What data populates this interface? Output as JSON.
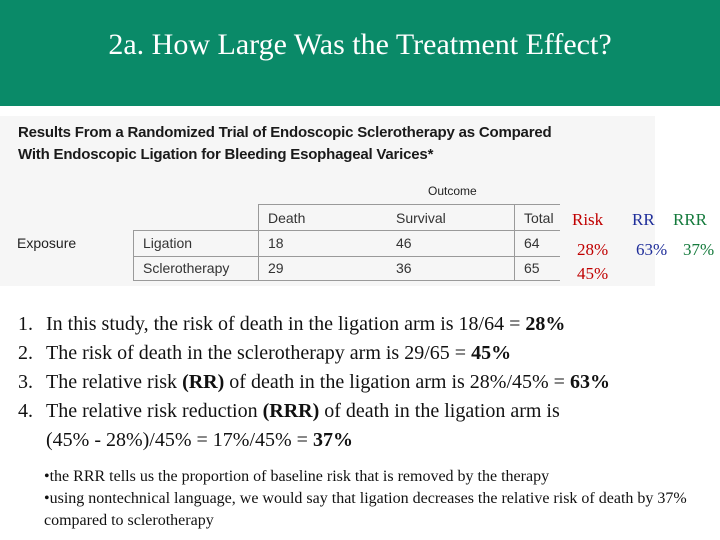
{
  "slide": {
    "title": "2a.  How Large Was the Treatment Effect?"
  },
  "figure": {
    "caption_line1": "Results From a Randomized Trial of Endoscopic Sclerotherapy as Compared",
    "caption_line2": "With Endoscopic Ligation for Bleeding Esophageal Varices*",
    "outcome_label": "Outcome",
    "headers": [
      "Death",
      "Survival",
      "Total"
    ],
    "exposure_label": "Exposure",
    "rows": [
      {
        "label": "Ligation",
        "death": "18",
        "survival": "46",
        "total": "64"
      },
      {
        "label": "Sclerotherapy",
        "death": "29",
        "survival": "36",
        "total": "65"
      }
    ]
  },
  "annotations": {
    "risk_header": "Risk",
    "rr_header": "RR",
    "rrr_header": "RRR",
    "risk_ligation": "28%",
    "rr_value": "63%",
    "rrr_value": "37%",
    "risk_sclerotherapy": "45%",
    "colors": {
      "risk": "#c00000",
      "rr": "#1f2e9a",
      "rrr": "#147a3c"
    }
  },
  "items": [
    {
      "num": "1.",
      "text": "In this study, the risk of death in the ligation arm is 18/64 = ",
      "bold": "28%"
    },
    {
      "num": "2.",
      "text": "The risk of death in the sclerotherapy arm is 29/65 = ",
      "bold": "45%"
    },
    {
      "num": "3.",
      "text_a": "The relative risk ",
      "bold_a": "(RR)",
      "text_b": " of death in the ligation arm is 28%/45% = ",
      "bold_b": "63%"
    },
    {
      "num": "4.",
      "text_a": "The relative risk  reduction ",
      "bold_a": "(RRR)",
      "text_b": " of death in the ligation arm is",
      "line2": "(45% - 28%)/45% = 17%/45% = ",
      "bold_line2": "37%"
    }
  ],
  "bullets": [
    "•the RRR tells us the proportion of baseline risk that is removed by the therapy",
    "•using nontechnical language, we would say that ligation decreases the relative risk of death by 37% compared to sclerotherapy"
  ],
  "theme": {
    "header_bg": "#0a8a68"
  }
}
